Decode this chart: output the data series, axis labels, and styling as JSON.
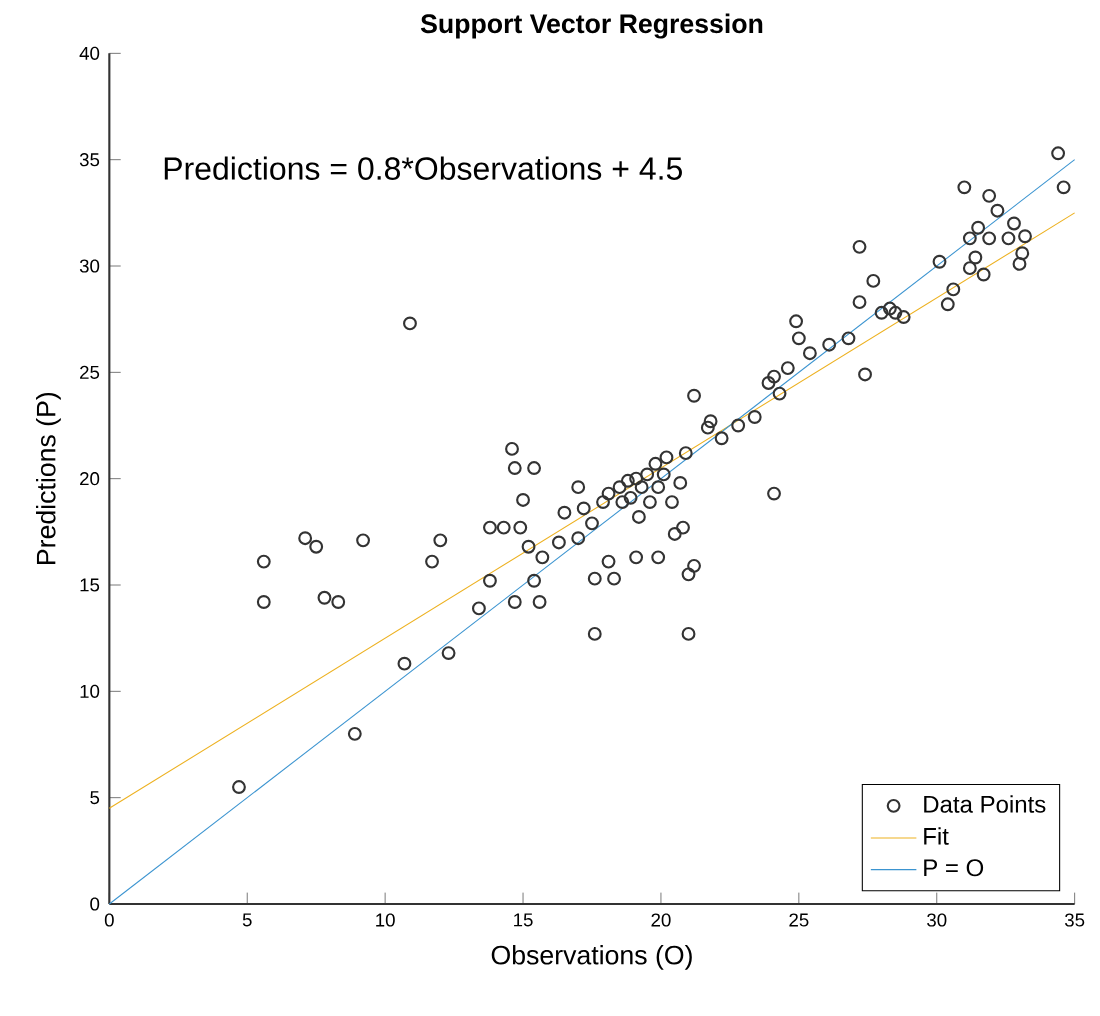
{
  "chart_data": {
    "type": "scatter",
    "title": "Support Vector Regression",
    "xlabel": "Observations (O)",
    "ylabel": "Predictions (P)",
    "annotations": [
      "Predictions = 0.8*Observations + 4.5"
    ],
    "xlim": [
      0,
      35
    ],
    "ylim": [
      0,
      40
    ],
    "xticks": [
      0,
      5,
      10,
      15,
      20,
      25,
      30,
      35
    ],
    "yticks": [
      0,
      5,
      10,
      15,
      20,
      25,
      30,
      35,
      40
    ],
    "grid": false,
    "legend": "bottom right",
    "series": [
      {
        "name": "Data Points",
        "marker": "circle",
        "color": "#333333",
        "x": [
          4.7,
          5.6,
          5.6,
          7.1,
          7.5,
          7.8,
          8.3,
          9.2,
          8.9,
          10.7,
          10.9,
          11.7,
          12.0,
          12.3,
          13.4,
          13.8,
          13.8,
          14.3,
          14.6,
          14.7,
          14.9,
          15.4,
          15.0,
          15.2,
          15.4,
          15.6,
          14.7,
          15.7,
          16.3,
          16.5,
          17.0,
          17.0,
          17.2,
          17.5,
          17.6,
          17.6,
          17.9,
          18.1,
          18.1,
          18.3,
          18.5,
          18.6,
          18.8,
          18.9,
          19.1,
          19.1,
          19.2,
          19.3,
          19.5,
          19.6,
          19.8,
          19.9,
          19.9,
          20.1,
          20.2,
          20.4,
          20.5,
          20.7,
          20.8,
          20.9,
          21.0,
          21.0,
          21.2,
          21.2,
          21.7,
          21.8,
          22.2,
          22.8,
          23.4,
          23.9,
          24.1,
          24.3,
          24.1,
          24.6,
          24.9,
          25.0,
          25.4,
          26.1,
          26.8,
          27.2,
          27.4,
          27.2,
          27.7,
          28.0,
          28.3,
          28.5,
          28.8,
          30.1,
          30.4,
          30.6,
          31.0,
          31.2,
          31.2,
          31.4,
          31.5,
          31.7,
          31.9,
          32.2,
          32.6,
          32.8,
          33.0,
          33.1,
          33.2,
          34.4,
          34.6,
          31.9
        ],
        "values": [
          5.5,
          16.1,
          14.2,
          17.2,
          16.8,
          14.4,
          14.2,
          17.1,
          8.0,
          11.3,
          27.3,
          16.1,
          17.1,
          11.8,
          13.9,
          15.2,
          17.7,
          17.7,
          21.4,
          20.5,
          17.7,
          20.5,
          19.0,
          16.8,
          15.2,
          14.2,
          14.2,
          16.3,
          17.0,
          18.4,
          17.2,
          19.6,
          18.6,
          17.9,
          15.3,
          12.7,
          18.9,
          19.3,
          16.1,
          15.3,
          19.6,
          18.9,
          19.9,
          19.1,
          20.0,
          16.3,
          18.2,
          19.6,
          20.2,
          18.9,
          20.7,
          19.6,
          16.3,
          20.2,
          21.0,
          18.9,
          17.4,
          19.8,
          17.7,
          21.2,
          15.5,
          12.7,
          15.9,
          23.9,
          22.4,
          22.7,
          21.9,
          22.5,
          22.9,
          24.5,
          24.8,
          24.0,
          19.3,
          25.2,
          27.4,
          26.6,
          25.9,
          26.3,
          26.6,
          28.3,
          24.9,
          30.9,
          29.3,
          27.8,
          28.0,
          27.8,
          27.6,
          30.2,
          28.2,
          28.9,
          33.7,
          31.3,
          29.9,
          30.4,
          31.8,
          29.6,
          33.3,
          32.6,
          31.3,
          32.0,
          30.1,
          30.6,
          31.4,
          35.3,
          33.7,
          31.3
        ]
      },
      {
        "name": "Fit",
        "type": "line",
        "line_style": "solid",
        "color": "#edb120",
        "x": [
          0,
          35
        ],
        "values": [
          4.5,
          32.5
        ]
      },
      {
        "name": "P = O",
        "type": "line",
        "line_style": "solid",
        "color": "#3b94d0",
        "x": [
          0,
          35
        ],
        "values": [
          0,
          35
        ]
      }
    ]
  }
}
